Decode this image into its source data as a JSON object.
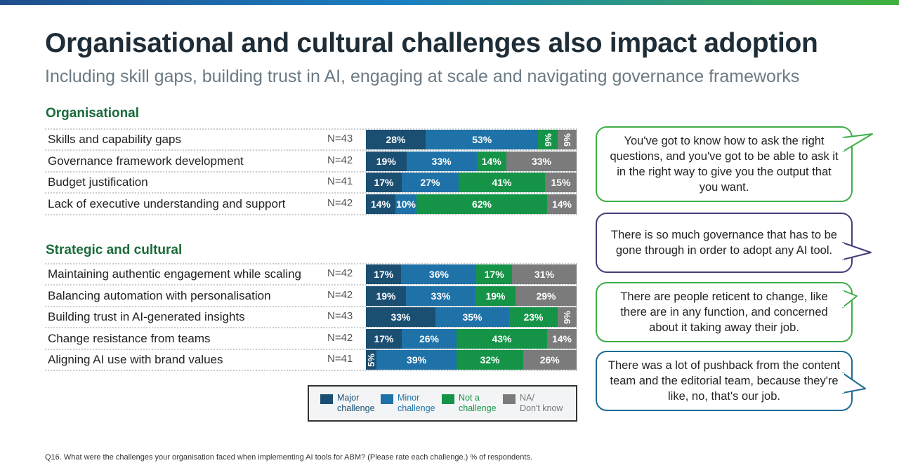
{
  "title": "Organisational and cultural challenges also impact adoption",
  "subtitle": "Including skill gaps, building trust in AI, engaging at scale and navigating governance frameworks",
  "colors": {
    "major": "#1b4f72",
    "minor": "#1f72a8",
    "not": "#159447",
    "na": "#7b7b7b",
    "heading": "#1a6b3a",
    "bubble_green": "#3fae49",
    "bubble_purple": "#4b3c7a",
    "bubble_blue": "#1f6a96"
  },
  "chart_data": {
    "type": "bar",
    "orientation": "horizontal",
    "stacked": true,
    "normalized": true,
    "unit": "% of respondents",
    "series_names": [
      "Major challenge",
      "Minor challenge",
      "Not a challenge",
      "NA/ Don't know"
    ],
    "sections": [
      {
        "heading": "Organisational",
        "rows": [
          {
            "label": "Skills and capability gaps",
            "n": "N=43",
            "values": [
              28,
              53,
              9,
              9
            ],
            "value_labels": [
              "28%",
              "53%",
              "9%",
              "9%"
            ]
          },
          {
            "label": "Governance framework development",
            "n": "N=42",
            "values": [
              19,
              33,
              14,
              33
            ],
            "value_labels": [
              "19%",
              "33%",
              "14%",
              "33%"
            ]
          },
          {
            "label": "Budget justification",
            "n": "N=41",
            "values": [
              17,
              27,
              41,
              15
            ],
            "value_labels": [
              "17%",
              "27%",
              "41%",
              "15%"
            ]
          },
          {
            "label": "Lack of executive understanding and support",
            "n": "N=42",
            "values": [
              14,
              10,
              62,
              14
            ],
            "value_labels": [
              "14%",
              "10%",
              "62%",
              "14%"
            ]
          }
        ]
      },
      {
        "heading": "Strategic and cultural",
        "rows": [
          {
            "label": "Maintaining authentic engagement while scaling",
            "n": "N=42",
            "values": [
              17,
              36,
              17,
              31
            ],
            "value_labels": [
              "17%",
              "36%",
              "17%",
              "31%"
            ]
          },
          {
            "label": "Balancing automation with personalisation",
            "n": "N=42",
            "values": [
              19,
              33,
              19,
              29
            ],
            "value_labels": [
              "19%",
              "33%",
              "19%",
              "29%"
            ]
          },
          {
            "label": "Building trust in AI-generated insights",
            "n": "N=43",
            "values": [
              33,
              35,
              23,
              9
            ],
            "value_labels": [
              "33%",
              "35%",
              "23%",
              "9%"
            ]
          },
          {
            "label": "Change resistance from teams",
            "n": "N=42",
            "values": [
              17,
              26,
              43,
              14
            ],
            "value_labels": [
              "17%",
              "26%",
              "43%",
              "14%"
            ]
          },
          {
            "label": "Aligning AI use with brand values",
            "n": "N=41",
            "values": [
              5,
              39,
              32,
              26
            ],
            "value_labels": [
              "5%",
              "39%",
              "32%",
              "26%"
            ]
          }
        ]
      }
    ]
  },
  "legend": [
    {
      "line1": "Major",
      "line2": "challenge"
    },
    {
      "line1": "Minor",
      "line2": "challenge"
    },
    {
      "line1": "Not a",
      "line2": "challenge"
    },
    {
      "line1": "NA/",
      "line2": "Don't know"
    }
  ],
  "quotes": [
    "You've got to know how to ask the right questions, and you've got to be able to ask it in the right way to give you the output that you want.",
    "There is so much governance that has to be gone through in order to adopt any AI tool.",
    "There are people reticent to change, like there are in any function, and concerned about it taking away their job.",
    "There was a lot of pushback from the content team and the editorial team, because they're like, no, that's our job."
  ],
  "footnote": "Q16. What were the challenges your organisation faced when implementing AI tools for ABM? (Please rate each challenge.) % of respondents."
}
